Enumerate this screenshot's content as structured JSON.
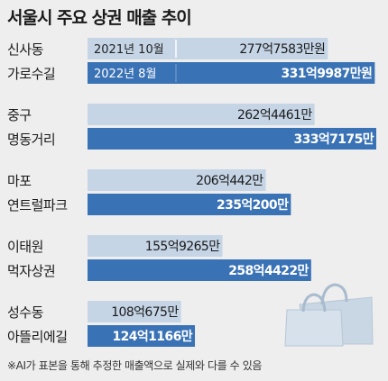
{
  "title": "서울시 주요 상권 매출 추이",
  "footnote": "※AI가 표본을 통해 추정한 매출액으로 실제와 다를 수 있음",
  "colors": {
    "old": "#c5d5e6",
    "new": "#3a72b6",
    "background": "#eeeeee"
  },
  "decoration": "shopping-bags-icon",
  "chart_data": {
    "type": "bar",
    "orientation": "horizontal",
    "unit": "만원",
    "categories": [
      {
        "line1": "신사동",
        "line2": "가로수길"
      },
      {
        "line1": "중구",
        "line2": "명동거리"
      },
      {
        "line1": "마포",
        "line2": "연트럴파크"
      },
      {
        "line1": "이태원",
        "line2": "먹자상권"
      },
      {
        "line1": "성수동",
        "line2": "아뜰리에길"
      }
    ],
    "series": [
      {
        "name": "2021년 10월",
        "values": [
          2777583,
          2624461,
          2060442,
          1559265,
          1080675
        ],
        "labels": [
          "277억7583만원",
          "262억4461만",
          "206억442만",
          "155억9265만",
          "108억675만"
        ]
      },
      {
        "name": "2022년 8월",
        "values": [
          3319987,
          3337175,
          2350200,
          2584422,
          1241166
        ],
        "labels": [
          "331억9987만원",
          "333억7175만",
          "235억200만",
          "258억4422만",
          "124억1166만"
        ]
      }
    ]
  }
}
